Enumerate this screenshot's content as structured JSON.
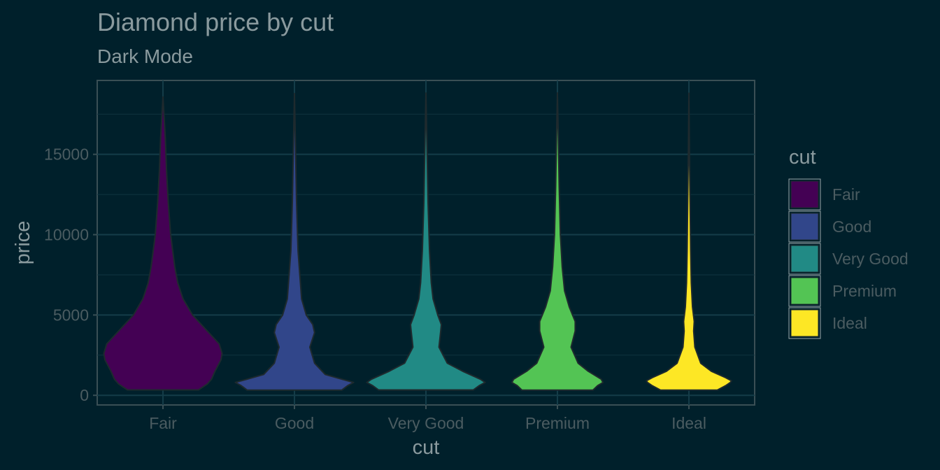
{
  "chart_data": {
    "type": "violin",
    "title": "Diamond price by cut",
    "subtitle": "Dark Mode",
    "xlabel": "cut",
    "ylabel": "price",
    "ylim": [
      -600,
      19600
    ],
    "yticks": [
      0,
      5000,
      10000,
      15000
    ],
    "categories": [
      "Fair",
      "Good",
      "Very Good",
      "Premium",
      "Ideal"
    ],
    "legend": {
      "title": "cut",
      "position": "right"
    },
    "grid": true,
    "series": [
      {
        "name": "Fair",
        "color": "#440154",
        "min": 337,
        "max": 18574,
        "density": [
          [
            337,
            0.6
          ],
          [
            700,
            0.75
          ],
          [
            1000,
            0.82
          ],
          [
            1500,
            0.88
          ],
          [
            2200,
            0.98
          ],
          [
            2600,
            1.0
          ],
          [
            3200,
            0.95
          ],
          [
            4000,
            0.75
          ],
          [
            5000,
            0.5
          ],
          [
            6000,
            0.34
          ],
          [
            7000,
            0.25
          ],
          [
            8000,
            0.2
          ],
          [
            10000,
            0.13
          ],
          [
            12000,
            0.09
          ],
          [
            14000,
            0.06
          ],
          [
            16000,
            0.04
          ],
          [
            18574,
            0.0
          ]
        ]
      },
      {
        "name": "Good",
        "color": "#31468a",
        "min": 327,
        "max": 18788,
        "density": [
          [
            327,
            0.8
          ],
          [
            600,
            0.9
          ],
          [
            800,
            1.0
          ],
          [
            1000,
            0.8
          ],
          [
            1300,
            0.52
          ],
          [
            2000,
            0.34
          ],
          [
            3000,
            0.26
          ],
          [
            3900,
            0.34
          ],
          [
            4400,
            0.31
          ],
          [
            5000,
            0.2
          ],
          [
            6000,
            0.12
          ],
          [
            7000,
            0.1
          ],
          [
            9000,
            0.06
          ],
          [
            12000,
            0.035
          ],
          [
            15000,
            0.02
          ],
          [
            18788,
            0.0
          ]
        ]
      },
      {
        "name": "Very Good",
        "color": "#218a85",
        "min": 336,
        "max": 18818,
        "density": [
          [
            336,
            0.8
          ],
          [
            600,
            0.9
          ],
          [
            800,
            1.0
          ],
          [
            1000,
            0.92
          ],
          [
            1500,
            0.62
          ],
          [
            2000,
            0.36
          ],
          [
            3000,
            0.22
          ],
          [
            4000,
            0.25
          ],
          [
            4400,
            0.26
          ],
          [
            5000,
            0.2
          ],
          [
            6000,
            0.12
          ],
          [
            7000,
            0.09
          ],
          [
            9000,
            0.06
          ],
          [
            12000,
            0.035
          ],
          [
            15000,
            0.02
          ],
          [
            18818,
            0.0
          ]
        ]
      },
      {
        "name": "Premium",
        "color": "#53c454",
        "min": 326,
        "max": 18823,
        "density": [
          [
            326,
            0.6
          ],
          [
            600,
            0.68
          ],
          [
            800,
            0.77
          ],
          [
            1000,
            0.74
          ],
          [
            1500,
            0.52
          ],
          [
            2000,
            0.35
          ],
          [
            3000,
            0.23
          ],
          [
            4000,
            0.3
          ],
          [
            4600,
            0.3
          ],
          [
            5500,
            0.2
          ],
          [
            6500,
            0.12
          ],
          [
            8000,
            0.08
          ],
          [
            10000,
            0.05
          ],
          [
            13000,
            0.03
          ],
          [
            16000,
            0.015
          ],
          [
            18823,
            0.0
          ]
        ]
      },
      {
        "name": "Ideal",
        "color": "#fde725",
        "min": 326,
        "max": 18806,
        "density": [
          [
            326,
            0.48
          ],
          [
            600,
            0.62
          ],
          [
            800,
            0.7
          ],
          [
            900,
            0.72
          ],
          [
            1100,
            0.62
          ],
          [
            1500,
            0.38
          ],
          [
            2000,
            0.2
          ],
          [
            3000,
            0.1
          ],
          [
            4000,
            0.08
          ],
          [
            4600,
            0.09
          ],
          [
            5500,
            0.06
          ],
          [
            7000,
            0.04
          ],
          [
            9000,
            0.03
          ],
          [
            12000,
            0.02
          ],
          [
            15000,
            0.01
          ],
          [
            18806,
            0.0
          ]
        ]
      }
    ]
  }
}
